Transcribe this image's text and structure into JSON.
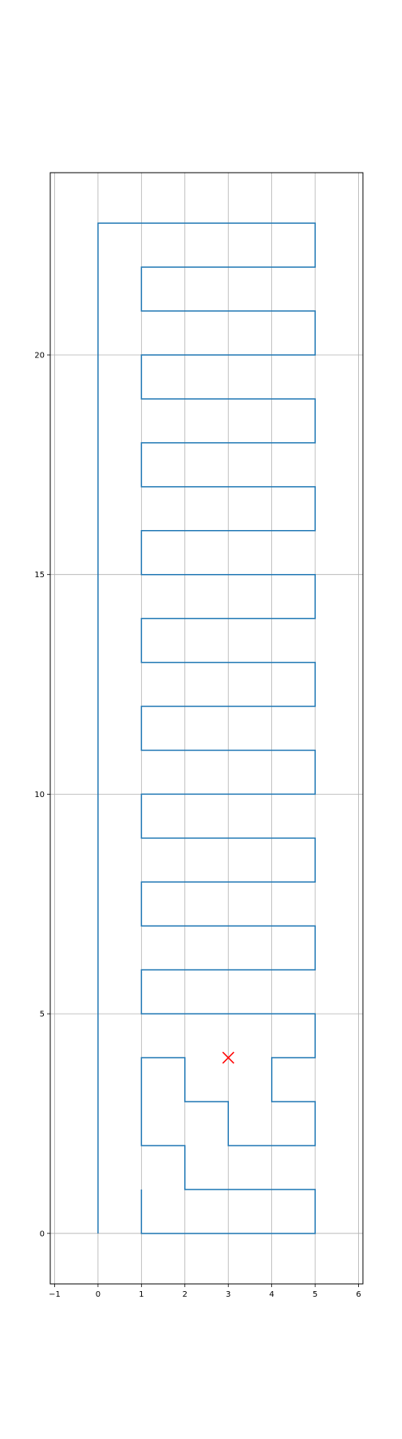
{
  "chart_data": {
    "type": "line",
    "title": "",
    "xlabel": "",
    "ylabel": "",
    "xlim": [
      -1.1,
      6.1
    ],
    "ylim": [
      -1.15,
      24.15
    ],
    "xticks": [
      -1,
      0,
      1,
      2,
      3,
      4,
      5,
      6
    ],
    "yticks": [
      0,
      5,
      10,
      15,
      20
    ],
    "grid": true,
    "series": [
      {
        "color": "#1f77b4",
        "points": [
          [
            0,
            0
          ],
          [
            0,
            23
          ],
          [
            5,
            23
          ],
          [
            5,
            22
          ],
          [
            1,
            22
          ],
          [
            1,
            21
          ],
          [
            5,
            21
          ],
          [
            5,
            20
          ],
          [
            1,
            20
          ],
          [
            1,
            19
          ],
          [
            5,
            19
          ],
          [
            5,
            18
          ],
          [
            1,
            18
          ],
          [
            1,
            17
          ],
          [
            5,
            17
          ],
          [
            5,
            16
          ],
          [
            1,
            16
          ],
          [
            1,
            15
          ],
          [
            5,
            15
          ],
          [
            5,
            14
          ],
          [
            1,
            14
          ],
          [
            1,
            13
          ],
          [
            5,
            13
          ],
          [
            5,
            12
          ],
          [
            1,
            12
          ],
          [
            1,
            11
          ],
          [
            5,
            11
          ],
          [
            5,
            10
          ],
          [
            1,
            10
          ],
          [
            1,
            9
          ],
          [
            5,
            9
          ],
          [
            5,
            8
          ],
          [
            1,
            8
          ],
          [
            1,
            7
          ],
          [
            5,
            7
          ],
          [
            5,
            6
          ],
          [
            1,
            6
          ],
          [
            1,
            5
          ],
          [
            5,
            5
          ],
          [
            5,
            4
          ],
          [
            4,
            4
          ],
          [
            4,
            3
          ],
          [
            5,
            3
          ],
          [
            5,
            2
          ],
          [
            3,
            2
          ],
          [
            3,
            3
          ],
          [
            2,
            3
          ],
          [
            2,
            4
          ],
          [
            1,
            4
          ],
          [
            1,
            2
          ],
          [
            2,
            2
          ],
          [
            2,
            1
          ],
          [
            5,
            1
          ],
          [
            5,
            0
          ],
          [
            1,
            0
          ],
          [
            1,
            1
          ]
        ]
      }
    ],
    "markers": [
      {
        "type": "x",
        "color": "#ff0000",
        "point": [
          3,
          4
        ]
      }
    ]
  }
}
